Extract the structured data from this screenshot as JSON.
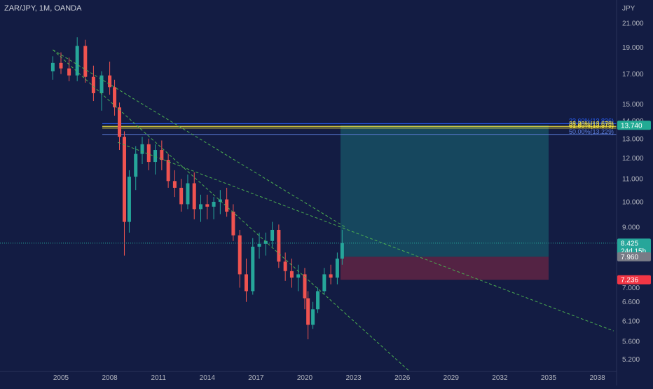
{
  "header": {
    "title": "ZAR/JPY, 1M, OANDA"
  },
  "chart_data": {
    "type": "candlestick",
    "currency_label": "JPY",
    "y_scale": "log",
    "y_ticks": [
      "21.000",
      "19.000",
      "17.000",
      "15.000",
      "14.000",
      "13.000",
      "12.000",
      "11.000",
      "10.000",
      "9.000",
      "8.000",
      "7.000",
      "6.600",
      "6.100",
      "5.600",
      "5.200"
    ],
    "x_ticks": [
      "2005",
      "2008",
      "2011",
      "2014",
      "2017",
      "2020",
      "2023",
      "2026",
      "2029",
      "2032",
      "2035",
      "2038"
    ],
    "current_price": {
      "value": "8.425",
      "countdown": "24d 15h",
      "color": "#26a69a"
    },
    "fib_levels": [
      {
        "label": "23.60%(13.836)",
        "price": 13.836,
        "color": "#2962ff"
      },
      {
        "label": "38.20%(13.679)",
        "price": 13.679,
        "color": "#ffeb3b"
      },
      {
        "label": "61.80%(13.579)",
        "price": 13.579,
        "color": "#ffeb3b"
      },
      {
        "label": "50.00%(13.229)",
        "price": 13.229,
        "color": "#5b7bd6"
      }
    ],
    "position": {
      "target": 13.74,
      "target_label": "13.740",
      "target_color": "#22ab94",
      "entry": 7.96,
      "entry_label": "7.960",
      "entry_color": "#787b86",
      "stop": 7.236,
      "stop_label": "7.236",
      "stop_color": "#f23645",
      "start_date": 2022.2,
      "end_date": 2035
    },
    "trendlines": [
      {
        "from": [
          2004.5,
          18.8
        ],
        "to": [
          2028.0,
          4.5
        ]
      },
      {
        "from": [
          2008.5,
          12.8
        ],
        "to": [
          2039.0,
          5.85
        ]
      },
      {
        "from": [
          2004.5,
          18.8
        ],
        "to": [
          2022.5,
          9.0
        ]
      }
    ],
    "candles": [
      [
        2004.5,
        17.2,
        18.3,
        16.6,
        17.8
      ],
      [
        2005.0,
        17.8,
        18.6,
        17.0,
        17.4
      ],
      [
        2005.5,
        17.4,
        18.2,
        16.5,
        16.9
      ],
      [
        2006.0,
        16.9,
        19.8,
        16.5,
        19.1
      ],
      [
        2006.5,
        19.1,
        19.6,
        16.4,
        16.8
      ],
      [
        2007.0,
        16.8,
        17.6,
        15.2,
        15.7
      ],
      [
        2007.5,
        15.7,
        17.2,
        14.6,
        16.9
      ],
      [
        2008.0,
        16.9,
        17.9,
        15.6,
        16.1
      ],
      [
        2008.3,
        16.1,
        16.6,
        14.3,
        14.8
      ],
      [
        2008.6,
        14.8,
        15.1,
        12.4,
        13.1
      ],
      [
        2008.9,
        13.1,
        13.4,
        8.0,
        9.2
      ],
      [
        2009.2,
        9.2,
        11.4,
        8.8,
        11.1
      ],
      [
        2009.6,
        11.1,
        12.6,
        10.5,
        12.2
      ],
      [
        2010.0,
        12.2,
        13.1,
        11.7,
        12.7
      ],
      [
        2010.4,
        12.7,
        13.0,
        11.4,
        11.8
      ],
      [
        2010.8,
        11.8,
        12.7,
        11.2,
        12.4
      ],
      [
        2011.2,
        12.4,
        12.9,
        11.4,
        11.9
      ],
      [
        2011.6,
        11.9,
        12.2,
        10.6,
        10.9
      ],
      [
        2012.0,
        10.9,
        11.4,
        10.2,
        10.6
      ],
      [
        2012.4,
        10.6,
        11.0,
        9.6,
        9.9
      ],
      [
        2012.8,
        9.9,
        11.2,
        9.7,
        10.8
      ],
      [
        2013.2,
        10.8,
        11.3,
        9.3,
        9.7
      ],
      [
        2013.6,
        9.7,
        10.3,
        9.2,
        9.9
      ],
      [
        2014.0,
        9.9,
        10.3,
        9.3,
        9.8
      ],
      [
        2014.4,
        9.8,
        10.2,
        9.3,
        10.0
      ],
      [
        2014.8,
        10.0,
        10.5,
        9.5,
        10.1
      ],
      [
        2015.2,
        10.1,
        10.6,
        9.4,
        9.6
      ],
      [
        2015.6,
        9.6,
        9.9,
        8.5,
        8.7
      ],
      [
        2016.0,
        8.7,
        8.9,
        7.0,
        7.4
      ],
      [
        2016.4,
        7.4,
        7.9,
        6.6,
        6.9
      ],
      [
        2016.8,
        6.9,
        8.6,
        6.8,
        8.3
      ],
      [
        2017.2,
        8.3,
        8.8,
        7.9,
        8.4
      ],
      [
        2017.6,
        8.4,
        8.8,
        8.0,
        8.5
      ],
      [
        2018.0,
        8.5,
        9.2,
        8.3,
        8.9
      ],
      [
        2018.4,
        8.9,
        9.1,
        7.6,
        7.8
      ],
      [
        2018.8,
        7.8,
        8.1,
        7.2,
        7.5
      ],
      [
        2019.2,
        7.5,
        7.9,
        7.0,
        7.3
      ],
      [
        2019.6,
        7.3,
        7.7,
        6.9,
        7.4
      ],
      [
        2020.0,
        7.4,
        7.6,
        6.4,
        6.7
      ],
      [
        2020.2,
        6.7,
        6.9,
        5.65,
        6.0
      ],
      [
        2020.5,
        6.0,
        6.6,
        5.9,
        6.4
      ],
      [
        2020.8,
        6.4,
        7.0,
        6.3,
        6.9
      ],
      [
        2021.2,
        6.9,
        7.6,
        6.8,
        7.4
      ],
      [
        2021.6,
        7.4,
        7.7,
        7.1,
        7.3
      ],
      [
        2022.0,
        7.3,
        8.1,
        7.1,
        7.9
      ],
      [
        2022.3,
        7.9,
        8.9,
        7.7,
        8.425
      ]
    ]
  }
}
